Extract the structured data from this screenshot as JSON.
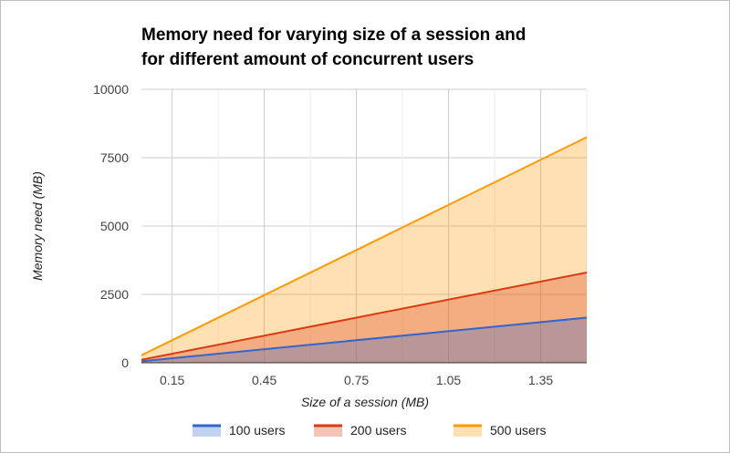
{
  "chart_data": {
    "type": "area",
    "title_lines": [
      "Memory need for varying size of a session and",
      "for different amount of concurrent users"
    ],
    "xlabel": "Size of a session (MB)",
    "ylabel": "Memory need (MB)",
    "xlim": [
      0.05,
      1.5
    ],
    "ylim": [
      0,
      10000
    ],
    "x_ticks": [
      0.15,
      0.45,
      0.75,
      1.05,
      1.35
    ],
    "x_tick_labels": [
      "0.15",
      "0.45",
      "0.75",
      "1.05",
      "1.35"
    ],
    "y_ticks": [
      0,
      2500,
      5000,
      7500,
      10000
    ],
    "y_tick_labels": [
      "0",
      "2500",
      "5000",
      "7500",
      "10000"
    ],
    "grid": true,
    "legend_position": "bottom",
    "x": [
      0.05,
      1.5
    ],
    "series": [
      {
        "name": "100 users",
        "color": "#3366cc",
        "fill": "#aec4ef",
        "values": [
          55,
          1650
        ]
      },
      {
        "name": "200 users",
        "color": "#dc3912",
        "fill": "#f2a382",
        "values": [
          110,
          3300
        ]
      },
      {
        "name": "500 users",
        "color": "#ff9900",
        "fill": "#fddaa3",
        "values": [
          275,
          8250
        ]
      }
    ]
  }
}
